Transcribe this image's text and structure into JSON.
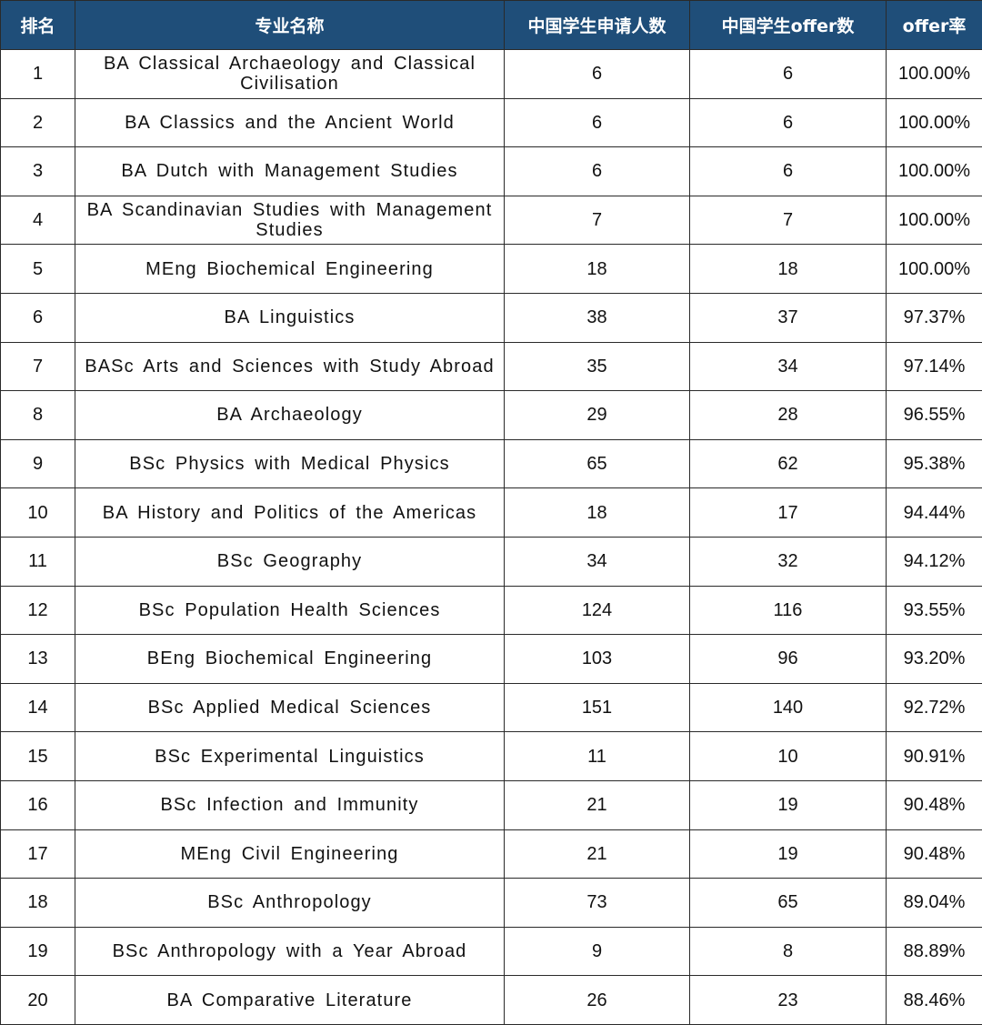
{
  "table": {
    "headers": {
      "rank": "排名",
      "name": "专业名称",
      "applicants": "中国学生申请人数",
      "offers": "中国学生offer数",
      "rate": "offer率"
    },
    "rows": [
      {
        "rank": "1",
        "name": "BA Classical Archaeology and Classical Civilisation",
        "applicants": "6",
        "offers": "6",
        "rate": "100.00%"
      },
      {
        "rank": "2",
        "name": "BA Classics and the Ancient World",
        "applicants": "6",
        "offers": "6",
        "rate": "100.00%"
      },
      {
        "rank": "3",
        "name": "BA Dutch with Management Studies",
        "applicants": "6",
        "offers": "6",
        "rate": "100.00%"
      },
      {
        "rank": "4",
        "name": "BA Scandinavian Studies with Management Studies",
        "applicants": "7",
        "offers": "7",
        "rate": "100.00%"
      },
      {
        "rank": "5",
        "name": "MEng Biochemical Engineering",
        "applicants": "18",
        "offers": "18",
        "rate": "100.00%"
      },
      {
        "rank": "6",
        "name": "BA Linguistics",
        "applicants": "38",
        "offers": "37",
        "rate": "97.37%"
      },
      {
        "rank": "7",
        "name": "BASc Arts and Sciences with Study Abroad",
        "applicants": "35",
        "offers": "34",
        "rate": "97.14%"
      },
      {
        "rank": "8",
        "name": "BA Archaeology",
        "applicants": "29",
        "offers": "28",
        "rate": "96.55%"
      },
      {
        "rank": "9",
        "name": "BSc Physics with Medical Physics",
        "applicants": "65",
        "offers": "62",
        "rate": "95.38%"
      },
      {
        "rank": "10",
        "name": "BA History and Politics of the Americas",
        "applicants": "18",
        "offers": "17",
        "rate": "94.44%"
      },
      {
        "rank": "11",
        "name": "BSc Geography",
        "applicants": "34",
        "offers": "32",
        "rate": "94.12%"
      },
      {
        "rank": "12",
        "name": "BSc Population Health Sciences",
        "applicants": "124",
        "offers": "116",
        "rate": "93.55%"
      },
      {
        "rank": "13",
        "name": "BEng Biochemical Engineering",
        "applicants": "103",
        "offers": "96",
        "rate": "93.20%"
      },
      {
        "rank": "14",
        "name": "BSc Applied Medical Sciences",
        "applicants": "151",
        "offers": "140",
        "rate": "92.72%"
      },
      {
        "rank": "15",
        "name": "BSc Experimental Linguistics",
        "applicants": "11",
        "offers": "10",
        "rate": "90.91%"
      },
      {
        "rank": "16",
        "name": "BSc Infection and Immunity",
        "applicants": "21",
        "offers": "19",
        "rate": "90.48%"
      },
      {
        "rank": "17",
        "name": "MEng Civil Engineering",
        "applicants": "21",
        "offers": "19",
        "rate": "90.48%"
      },
      {
        "rank": "18",
        "name": "BSc Anthropology",
        "applicants": "73",
        "offers": "65",
        "rate": "89.04%"
      },
      {
        "rank": "19",
        "name": "BSc Anthropology with a Year Abroad",
        "applicants": "9",
        "offers": "8",
        "rate": "88.89%"
      },
      {
        "rank": "20",
        "name": "BA Comparative Literature",
        "applicants": "26",
        "offers": "23",
        "rate": "88.46%"
      }
    ]
  },
  "colors": {
    "header_background": "#1f4e79",
    "header_text": "#ffffff",
    "grid_line": "#2a2a2a"
  }
}
